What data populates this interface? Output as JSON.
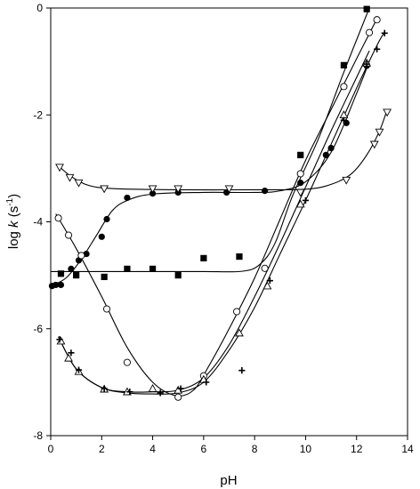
{
  "chart_data": {
    "type": "scatter",
    "title": "",
    "xlabel": "pH",
    "ylabel": {
      "base": "log ",
      "italic": "k",
      "unit_open": " (s",
      "unit_sup": "-1",
      "unit_close": ")"
    },
    "xlim": [
      0,
      14
    ],
    "ylim": [
      -8,
      0
    ],
    "xticks": [
      0,
      2,
      4,
      6,
      8,
      10,
      12,
      14
    ],
    "yticks": [
      -8,
      -6,
      -4,
      -2,
      0
    ],
    "grid": false,
    "legend": "none",
    "series": [
      {
        "marker": "filled-square",
        "points": [
          [
            0.4,
            -4.97
          ],
          [
            1.0,
            -5.0
          ],
          [
            2.1,
            -5.03
          ],
          [
            3.0,
            -4.88
          ],
          [
            4.0,
            -4.88
          ],
          [
            5.0,
            -5.0
          ],
          [
            6.0,
            -4.68
          ],
          [
            7.4,
            -4.65
          ],
          [
            9.8,
            -2.75
          ],
          [
            11.5,
            -1.07
          ],
          [
            12.4,
            -0.02
          ]
        ],
        "curve": [
          [
            0,
            -4.93
          ],
          [
            2,
            -4.93
          ],
          [
            4,
            -4.93
          ],
          [
            6,
            -4.93
          ],
          [
            7.5,
            -4.925
          ],
          [
            8.2,
            -4.8
          ],
          [
            8.8,
            -4.4
          ],
          [
            9.5,
            -3.5
          ],
          [
            10.5,
            -2.45
          ],
          [
            11.5,
            -1.2
          ],
          [
            12.5,
            0.0
          ]
        ]
      },
      {
        "marker": "filled-circle",
        "points": [
          [
            0.05,
            -5.2
          ],
          [
            0.2,
            -5.18
          ],
          [
            0.4,
            -5.18
          ],
          [
            0.8,
            -4.88
          ],
          [
            1.1,
            -4.72
          ],
          [
            1.4,
            -4.6
          ],
          [
            2.0,
            -4.28
          ],
          [
            2.2,
            -3.95
          ],
          [
            3.0,
            -3.55
          ],
          [
            4.0,
            -3.47
          ],
          [
            5.0,
            -3.45
          ],
          [
            6.9,
            -3.45
          ],
          [
            8.4,
            -3.42
          ],
          [
            9.8,
            -3.27
          ],
          [
            10.8,
            -2.75
          ],
          [
            11.0,
            -2.62
          ],
          [
            11.6,
            -2.15
          ],
          [
            12.4,
            -1.08
          ]
        ],
        "curve": [
          [
            0,
            -5.2
          ],
          [
            0.6,
            -5.05
          ],
          [
            1.2,
            -4.7
          ],
          [
            1.8,
            -4.25
          ],
          [
            2.4,
            -3.8
          ],
          [
            3.0,
            -3.6
          ],
          [
            4.0,
            -3.48
          ],
          [
            6.0,
            -3.45
          ],
          [
            8.0,
            -3.45
          ],
          [
            9.0,
            -3.42
          ],
          [
            10.0,
            -3.25
          ],
          [
            11.0,
            -2.7
          ],
          [
            12.0,
            -1.6
          ],
          [
            12.5,
            -1.0
          ]
        ]
      },
      {
        "marker": "open-circle",
        "points": [
          [
            0.3,
            -3.93
          ],
          [
            0.7,
            -4.25
          ],
          [
            1.2,
            -4.63
          ],
          [
            2.2,
            -5.63
          ],
          [
            3.0,
            -6.63
          ],
          [
            5.0,
            -7.28
          ],
          [
            6.0,
            -6.88
          ],
          [
            7.3,
            -5.68
          ],
          [
            8.4,
            -4.87
          ],
          [
            9.8,
            -3.1
          ],
          [
            11.5,
            -1.47
          ],
          [
            12.5,
            -0.46
          ],
          [
            12.8,
            -0.22
          ]
        ],
        "curve": [
          [
            0.2,
            -3.85
          ],
          [
            1.0,
            -4.5
          ],
          [
            2.0,
            -5.4
          ],
          [
            3.0,
            -6.35
          ],
          [
            4.0,
            -7.0
          ],
          [
            4.9,
            -7.25
          ],
          [
            5.6,
            -7.15
          ],
          [
            6.2,
            -6.7
          ],
          [
            7.0,
            -6.0
          ],
          [
            8.0,
            -5.05
          ],
          [
            9.0,
            -3.95
          ],
          [
            10.0,
            -2.85
          ],
          [
            11.0,
            -1.9
          ],
          [
            12.0,
            -0.95
          ],
          [
            12.8,
            -0.2
          ]
        ]
      },
      {
        "marker": "open-triangle-up",
        "points": [
          [
            0.4,
            -6.23
          ],
          [
            0.7,
            -6.55
          ],
          [
            1.1,
            -6.8
          ],
          [
            2.1,
            -7.13
          ],
          [
            3.0,
            -7.18
          ],
          [
            4.0,
            -7.12
          ],
          [
            5.0,
            -7.15
          ],
          [
            6.0,
            -6.95
          ],
          [
            7.4,
            -6.08
          ],
          [
            8.5,
            -5.2
          ],
          [
            9.8,
            -3.67
          ],
          [
            11.5,
            -2.0
          ],
          [
            12.4,
            -1.03
          ]
        ],
        "curve": [
          [
            0.3,
            -6.15
          ],
          [
            1.0,
            -6.75
          ],
          [
            2.0,
            -7.1
          ],
          [
            3.0,
            -7.18
          ],
          [
            4.0,
            -7.18
          ],
          [
            5.0,
            -7.15
          ],
          [
            6.0,
            -6.92
          ],
          [
            7.0,
            -6.3
          ],
          [
            8.0,
            -5.4
          ],
          [
            9.0,
            -4.4
          ],
          [
            10.0,
            -3.35
          ],
          [
            11.0,
            -2.3
          ],
          [
            12.0,
            -1.3
          ],
          [
            12.5,
            -0.8
          ]
        ]
      },
      {
        "marker": "plus",
        "points": [
          [
            0.35,
            -6.2
          ],
          [
            0.8,
            -6.45
          ],
          [
            1.1,
            -6.77
          ],
          [
            2.1,
            -7.12
          ],
          [
            3.1,
            -7.18
          ],
          [
            4.3,
            -7.2
          ],
          [
            5.1,
            -7.12
          ],
          [
            6.1,
            -7.0
          ],
          [
            7.5,
            -6.78
          ],
          [
            8.6,
            -5.1
          ],
          [
            10.0,
            -3.6
          ],
          [
            11.5,
            -2.1
          ],
          [
            12.4,
            -1.05
          ],
          [
            12.8,
            -0.77
          ],
          [
            13.1,
            -0.47
          ]
        ],
        "curve": [
          [
            0.3,
            -6.15
          ],
          [
            1.0,
            -6.75
          ],
          [
            2.0,
            -7.1
          ],
          [
            3.0,
            -7.2
          ],
          [
            4.0,
            -7.22
          ],
          [
            5.0,
            -7.2
          ],
          [
            6.0,
            -7.0
          ],
          [
            7.0,
            -6.4
          ],
          [
            8.0,
            -5.6
          ],
          [
            9.0,
            -4.6
          ],
          [
            10.0,
            -3.6
          ],
          [
            11.0,
            -2.55
          ],
          [
            12.0,
            -1.5
          ],
          [
            12.8,
            -0.7
          ],
          [
            13.1,
            -0.45
          ]
        ]
      },
      {
        "marker": "open-triangle-down",
        "points": [
          [
            0.35,
            -2.98
          ],
          [
            0.75,
            -3.17
          ],
          [
            1.1,
            -3.27
          ],
          [
            2.1,
            -3.38
          ],
          [
            4.0,
            -3.38
          ],
          [
            5.0,
            -3.38
          ],
          [
            7.0,
            -3.38
          ],
          [
            9.8,
            -3.45
          ],
          [
            11.6,
            -3.22
          ],
          [
            12.7,
            -2.55
          ],
          [
            12.9,
            -2.32
          ],
          [
            13.2,
            -1.95
          ]
        ],
        "curve": [
          [
            0.3,
            -2.95
          ],
          [
            0.8,
            -3.15
          ],
          [
            1.5,
            -3.32
          ],
          [
            2.5,
            -3.38
          ],
          [
            5.0,
            -3.4
          ],
          [
            8.0,
            -3.4
          ],
          [
            10.0,
            -3.39
          ],
          [
            11.0,
            -3.3
          ],
          [
            11.8,
            -3.1
          ],
          [
            12.4,
            -2.75
          ],
          [
            12.9,
            -2.3
          ],
          [
            13.2,
            -1.9
          ]
        ]
      }
    ]
  }
}
